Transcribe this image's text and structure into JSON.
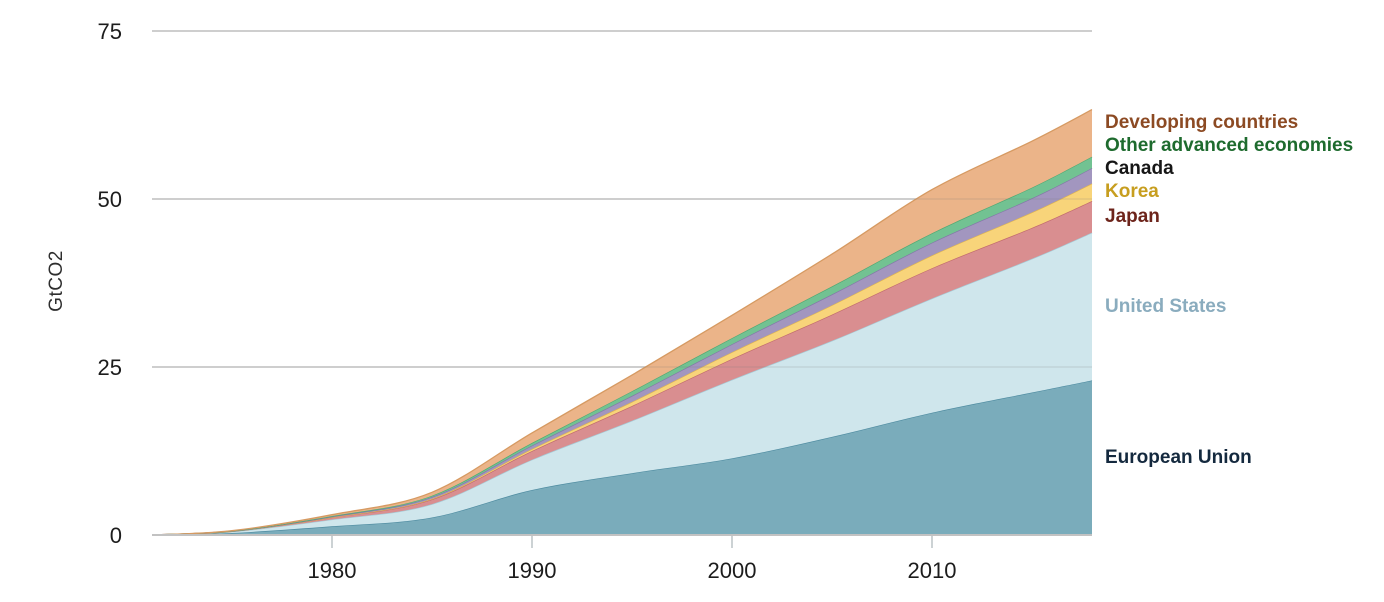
{
  "chart": {
    "background": "#ffffff",
    "grid_color": "#cccccc",
    "grid_overlay_color": "rgba(120,120,120,0.20)",
    "axis_line_color": "#c2c2c2",
    "tick_mark_color": "#bfc6c9",
    "tick_text_color": "#1c1c1c"
  },
  "chart_data": {
    "type": "area",
    "stacked": true,
    "title": "",
    "xlabel": "",
    "ylabel": "GtCO2",
    "grid": true,
    "legend_position": "right",
    "xlim": [
      1971,
      2018
    ],
    "ylim": [
      0,
      75
    ],
    "xticks": [
      1980,
      1990,
      2000,
      2010
    ],
    "yticks": [
      0,
      25,
      50,
      75
    ],
    "x": [
      1971,
      1975,
      1980,
      1985,
      1990,
      1995,
      2000,
      2005,
      2010,
      2015,
      2018
    ],
    "series": [
      {
        "name": "European Union",
        "slug": "european-union",
        "values": [
          0,
          0.3,
          1.3,
          2.6,
          6.7,
          9.2,
          11.4,
          14.6,
          18.2,
          21.2,
          23.0
        ],
        "fill": "#7AACBB",
        "edge": "#4E8BA0",
        "label_color": "#14293E"
      },
      {
        "name": "United States",
        "slug": "united-states",
        "values": [
          0,
          0.2,
          1.0,
          2.0,
          4.5,
          7.8,
          11.7,
          14.3,
          17.0,
          19.9,
          22.0
        ],
        "fill": "#CFE6EC",
        "edge": "#A5CBD7",
        "label_color": "#8AACBE"
      },
      {
        "name": "Japan",
        "slug": "japan",
        "values": [
          0,
          0.05,
          0.3,
          0.7,
          1.3,
          2.2,
          3.1,
          3.9,
          4.5,
          4.6,
          4.7
        ],
        "fill": "#D98E90",
        "edge": "#C06A6E",
        "label_color": "#6D241B"
      },
      {
        "name": "Korea",
        "slug": "korea",
        "values": [
          0,
          0,
          0.02,
          0.1,
          0.3,
          0.6,
          1.0,
          1.4,
          1.9,
          2.3,
          2.6
        ],
        "fill": "#F8D47A",
        "edge": "#E0B54E",
        "label_color": "#C79E1F"
      },
      {
        "name": "Canada",
        "slug": "canada",
        "values": [
          0,
          0.02,
          0.1,
          0.25,
          0.5,
          0.9,
          1.2,
          1.6,
          1.9,
          2.1,
          2.3
        ],
        "fill": "#A296BF",
        "edge": "#8376A8",
        "label_color": "#161616"
      },
      {
        "name": "Other advanced economies",
        "slug": "other-advanced-economies",
        "values": [
          0,
          0.02,
          0.1,
          0.2,
          0.4,
          0.7,
          0.9,
          1.2,
          1.4,
          1.6,
          1.7
        ],
        "fill": "#72C292",
        "edge": "#4FA873",
        "label_color": "#1E6B2E"
      },
      {
        "name": "Developing countries",
        "slug": "developing-countries",
        "values": [
          0,
          0.05,
          0.2,
          0.5,
          1.5,
          2.4,
          3.4,
          4.8,
          6.5,
          6.9,
          7.0
        ],
        "fill": "#EBB489",
        "edge": "#D69A62",
        "label_color": "#8C4A23"
      }
    ]
  }
}
